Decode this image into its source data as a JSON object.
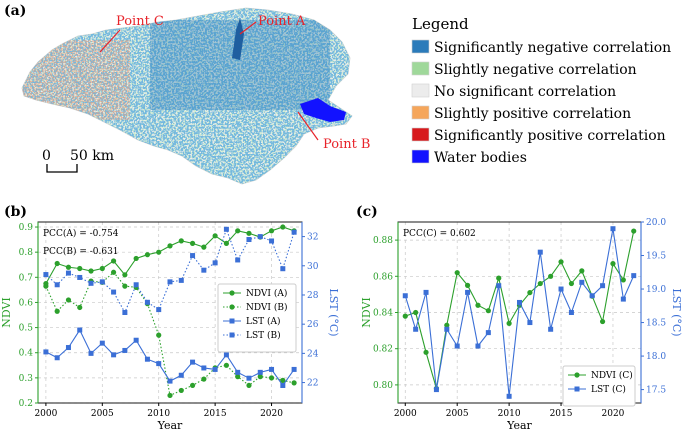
{
  "panel_a": {
    "tag": "(a)",
    "points": [
      {
        "label": "Point C",
        "color": "#e8232a"
      },
      {
        "label": "Point A",
        "color": "#e8232a"
      },
      {
        "label": "Point B",
        "color": "#e8232a"
      }
    ],
    "scalebar": {
      "zero": "0",
      "label": "50 km"
    },
    "legend": {
      "title": "Legend",
      "items": [
        {
          "label": "Significantly negative correlation",
          "color": "#2b7bba"
        },
        {
          "label": "Slightly negative correlation",
          "color": "#9fd89a"
        },
        {
          "label": "No significant correlation",
          "color": "#ececec"
        },
        {
          "label": "Slightly positive correlation",
          "color": "#f5a65b"
        },
        {
          "label": "Significantly positive correlation",
          "color": "#d7191c"
        },
        {
          "label": "Water bodies",
          "color": "#1212ff"
        }
      ]
    }
  },
  "chart_data": [
    {
      "type": "line",
      "tag": "(b)",
      "xlabel": "Year",
      "ylabel": "NDVI",
      "y2label": "LST (°C)",
      "xlim": [
        1999.3,
        2022.7
      ],
      "ylim": [
        0.2,
        0.92
      ],
      "y2lim": [
        20.6,
        33.0
      ],
      "xticks": [
        "2000",
        "2005",
        "2010",
        "2015",
        "2020"
      ],
      "yticks": [
        "0.2",
        "0.3",
        "0.4",
        "0.5",
        "0.6",
        "0.7",
        "0.8",
        "0.9"
      ],
      "y2ticks": [
        "22",
        "24",
        "26",
        "28",
        "30",
        "32"
      ],
      "grid": true,
      "legend_position": "center-right",
      "annotations": [
        "PCC(A) = -0.754",
        "PCC(B) = -0.631"
      ],
      "x": [
        2000,
        2001,
        2002,
        2003,
        2004,
        2005,
        2006,
        2007,
        2008,
        2009,
        2010,
        2011,
        2012,
        2013,
        2014,
        2015,
        2016,
        2017,
        2018,
        2019,
        2020,
        2021,
        2022
      ],
      "series": [
        {
          "name": "NDVI (A)",
          "axis": "left",
          "color": "#2ca02c",
          "line": "solid",
          "marker": "circle",
          "values": [
            0.675,
            0.755,
            0.74,
            0.735,
            0.725,
            0.735,
            0.765,
            0.71,
            0.775,
            0.79,
            0.8,
            0.825,
            0.845,
            0.835,
            0.82,
            0.865,
            0.835,
            0.885,
            0.875,
            0.86,
            0.885,
            0.9,
            0.885
          ]
        },
        {
          "name": "NDVI (B)",
          "axis": "left",
          "color": "#2ca02c",
          "line": "dotted",
          "marker": "circle",
          "values": [
            0.665,
            0.565,
            0.61,
            0.58,
            0.685,
            0.68,
            0.72,
            0.665,
            0.66,
            0.595,
            0.47,
            0.23,
            0.25,
            0.27,
            0.295,
            0.34,
            0.35,
            0.305,
            0.27,
            0.305,
            0.3,
            0.29,
            0.28
          ]
        },
        {
          "name": "LST (A)",
          "axis": "right",
          "color": "#3b6fd6",
          "line": "solid",
          "marker": "square",
          "values": [
            24.1,
            23.7,
            24.4,
            25.6,
            24.0,
            24.7,
            23.9,
            24.2,
            24.9,
            23.6,
            23.3,
            22.1,
            22.5,
            23.4,
            23.0,
            22.9,
            23.9,
            22.7,
            22.3,
            22.7,
            22.9,
            21.8,
            22.9
          ]
        },
        {
          "name": "LST (B)",
          "axis": "right",
          "color": "#3b6fd6",
          "line": "dotted",
          "marker": "square",
          "values": [
            29.4,
            28.7,
            29.5,
            29.2,
            28.8,
            28.9,
            28.2,
            26.8,
            28.7,
            27.5,
            27.0,
            28.9,
            29.0,
            30.7,
            29.7,
            30.2,
            32.5,
            30.4,
            31.8,
            32.0,
            31.7,
            29.8,
            32.3
          ]
        }
      ]
    },
    {
      "type": "line",
      "tag": "(c)",
      "xlabel": "Year",
      "ylabel": "NDVI",
      "y2label": "LST (°C)",
      "xlim": [
        1999.3,
        2022.7
      ],
      "ylim": [
        0.79,
        0.89
      ],
      "y2lim": [
        17.3,
        20.0
      ],
      "xticks": [
        "2000",
        "2005",
        "2010",
        "2015",
        "2020"
      ],
      "yticks": [
        "0.80",
        "0.82",
        "0.84",
        "0.86",
        "0.88"
      ],
      "y2ticks": [
        "17.5",
        "18.0",
        "18.5",
        "19.0",
        "19.5",
        "20.0"
      ],
      "grid": true,
      "legend_position": "bottom-right",
      "annotations": [
        "PCC(C) = 0.602"
      ],
      "x": [
        2000,
        2001,
        2002,
        2003,
        2004,
        2005,
        2006,
        2007,
        2008,
        2009,
        2010,
        2011,
        2012,
        2013,
        2014,
        2015,
        2016,
        2017,
        2018,
        2019,
        2020,
        2021,
        2022
      ],
      "series": [
        {
          "name": "NDVI (C)",
          "axis": "left",
          "color": "#2ca02c",
          "line": "solid",
          "marker": "circle",
          "values": [
            0.838,
            0.84,
            0.818,
            0.798,
            0.833,
            0.862,
            0.855,
            0.844,
            0.841,
            0.859,
            0.834,
            0.844,
            0.851,
            0.856,
            0.86,
            0.868,
            0.856,
            0.863,
            0.849,
            0.835,
            0.867,
            0.858,
            0.885
          ]
        },
        {
          "name": "LST (C)",
          "axis": "right",
          "color": "#3b6fd6",
          "line": "solid",
          "marker": "square",
          "values": [
            18.9,
            18.4,
            18.95,
            17.5,
            18.4,
            18.15,
            18.95,
            18.15,
            18.35,
            19.05,
            17.4,
            18.8,
            18.5,
            19.55,
            18.4,
            19.0,
            18.65,
            19.1,
            18.9,
            19.05,
            19.9,
            18.85,
            19.2
          ]
        }
      ]
    }
  ]
}
